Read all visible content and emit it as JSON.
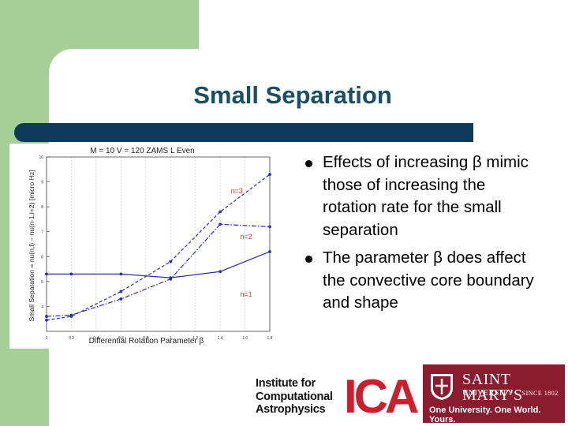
{
  "slide": {
    "title": "Small Separation",
    "bullets": [
      "Effects of increasing β mimic those of increasing the rotation rate for the small separation",
      "The parameter β does affect the convective core boundary and shape"
    ]
  },
  "logos": {
    "ica_text_lines": [
      "Institute for",
      "Computational",
      "Astrophysics"
    ],
    "ica_mark": "ICA",
    "smu_name": "SAINT MARY'S",
    "smu_sub": "UNIVERSITY",
    "smu_since": "SINCE 1802",
    "smu_tagline": "One University. One World. Yours."
  },
  "colors": {
    "green": "#a5cf96",
    "navy": "#0e3b5c",
    "title": "#1a4f63",
    "series": "#2a2fb0",
    "annotation": "#d63a2a",
    "smu": "#8b1b2e",
    "ica": "#cc1f2e"
  },
  "chart_data": {
    "type": "line",
    "title": "M = 10  V = 120  ZAMS  L Even",
    "xlabel": "Differential Rotation Parameter β",
    "ylabel": "Small Separation = nu(n,l) – nu(n-1,l+2) [micro Hz]",
    "xlim": [
      0,
      1.8
    ],
    "ylim": [
      3,
      10
    ],
    "x_ticks": [
      "0",
      "0.2",
      "0.4",
      "0.6",
      "0.8",
      "1",
      "1.2",
      "1.4",
      "1.6",
      "1.8"
    ],
    "y_ticks": [
      "10",
      "9",
      "8",
      "7",
      "6",
      "5",
      "4"
    ],
    "x": [
      0,
      0.2,
      0.6,
      1.0,
      1.4,
      1.8
    ],
    "series": [
      {
        "name": "n=1",
        "style": "solid",
        "values": [
          5.3,
          5.3,
          5.3,
          5.15,
          5.4,
          6.2
        ]
      },
      {
        "name": "n=2",
        "style": "dashdot",
        "values": [
          3.6,
          3.65,
          4.3,
          5.1,
          7.3,
          7.2
        ]
      },
      {
        "name": "n=3",
        "style": "dashed",
        "values": [
          3.45,
          3.6,
          4.6,
          5.8,
          7.8,
          9.3
        ]
      }
    ],
    "annotations": [
      "n=3",
      "n=2",
      "n=1"
    ]
  }
}
